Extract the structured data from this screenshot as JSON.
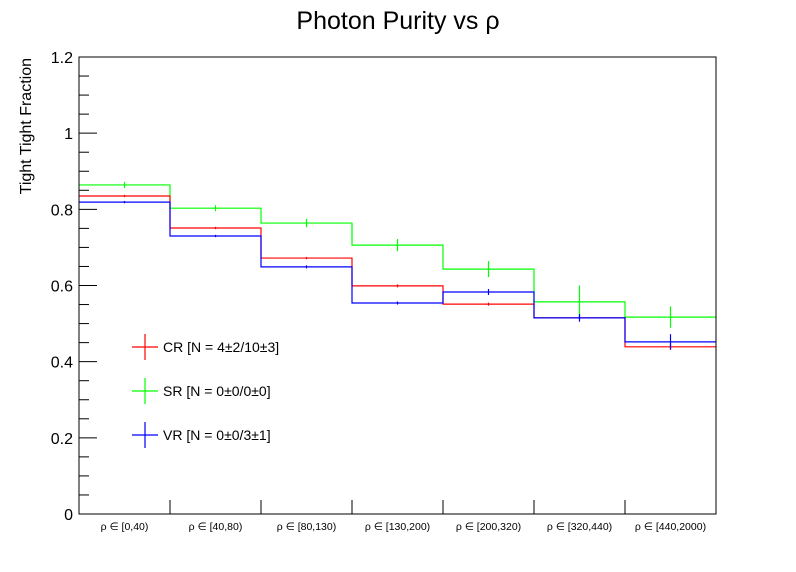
{
  "chart_data": {
    "type": "histogram-step",
    "title": "Photon Purity vs  ρ",
    "xlabel": "",
    "ylabel": "Tight Tight Fraction",
    "ylim": [
      0,
      1.2
    ],
    "yticks": [
      {
        "value": 0,
        "label": "0"
      },
      {
        "value": 0.2,
        "label": "0.2"
      },
      {
        "value": 0.4,
        "label": "0.4"
      },
      {
        "value": 0.6,
        "label": "0.6"
      },
      {
        "value": 0.8,
        "label": "0.8"
      },
      {
        "value": 1.0,
        "label": "1"
      },
      {
        "value": 1.2,
        "label": "1.2"
      }
    ],
    "yminor_step": 0.05,
    "grid": false,
    "categories": [
      "ρ ∈ [0,40)",
      "ρ ∈ [40,80)",
      "ρ ∈ [80,130)",
      "ρ ∈ [130,200)",
      "ρ ∈ [200,320)",
      "ρ ∈ [320,440)",
      "ρ ∈ [440,2000)"
    ],
    "series": [
      {
        "name": "CR",
        "legend": "CR [N = 4±2/10±3]",
        "color": "#ff0000",
        "values": [
          0.835,
          0.751,
          0.672,
          0.599,
          0.551,
          0.515,
          0.439
        ],
        "errors": [
          0.003,
          0.003,
          0.003,
          0.004,
          0.004,
          0.005,
          0.008
        ]
      },
      {
        "name": "SR",
        "legend": "SR [N = 0±0/0±0]",
        "color": "#00ff00",
        "values": [
          0.864,
          0.803,
          0.764,
          0.706,
          0.643,
          0.557,
          0.517
        ],
        "errors": [
          0.008,
          0.008,
          0.011,
          0.016,
          0.021,
          0.043,
          0.028
        ]
      },
      {
        "name": "VR",
        "legend": "VR [N = 0±0/3±1]",
        "color": "#0000ff",
        "values": [
          0.819,
          0.73,
          0.649,
          0.554,
          0.583,
          0.515,
          0.452
        ],
        "errors": [
          0.003,
          0.003,
          0.004,
          0.004,
          0.008,
          0.01,
          0.02
        ]
      }
    ],
    "legend_position": "lower-left inside"
  }
}
